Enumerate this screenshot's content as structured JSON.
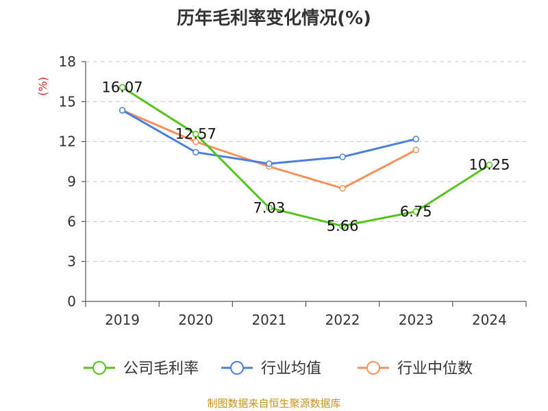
{
  "title": "历年毛利率变化情况(%)",
  "footer": "制图数据来自恒生聚源数据库",
  "chart_data": {
    "type": "line",
    "title": "历年毛利率变化情况(%)",
    "ylabel": "(%)",
    "categories": [
      "2019",
      "2020",
      "2021",
      "2022",
      "2023",
      "2024"
    ],
    "ylim": [
      0,
      18
    ],
    "yticks": [
      0,
      3,
      6,
      9,
      12,
      15,
      18
    ],
    "grid": true,
    "legend": "bottom",
    "series": [
      {
        "name": "公司毛利率",
        "color": "#52c41a",
        "values": [
          16.07,
          12.57,
          7.03,
          5.66,
          6.75,
          10.25
        ],
        "labels": [
          "16.07",
          "12.57",
          "7.03",
          "5.66",
          "6.75",
          "10.25"
        ]
      },
      {
        "name": "行业均值",
        "color": "#4a7fe0",
        "values": [
          14.35,
          11.2,
          10.34,
          10.85,
          12.19,
          null
        ]
      },
      {
        "name": "行业中位数",
        "color": "#f79059",
        "values": [
          14.35,
          11.99,
          10.13,
          8.49,
          11.37,
          null
        ]
      }
    ]
  }
}
